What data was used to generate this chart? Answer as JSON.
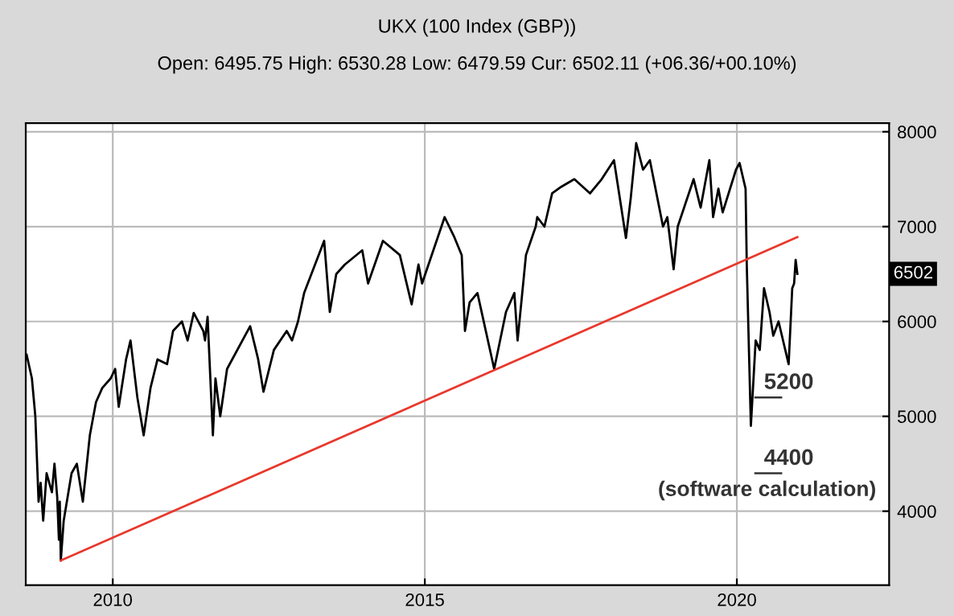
{
  "chart_data": {
    "type": "line",
    "title": "UKX (100 Index (GBP))",
    "subtitle": "Open: 6495.75 High: 6530.28 Low: 6479.59 Cur: 6502.11 (+06.36/+00.10%)",
    "xlim": [
      "2008-08-10",
      "2022-06-10"
    ],
    "ylim": [
      3220,
      8090
    ],
    "xticks": [
      "2010",
      "2015",
      "2020"
    ],
    "yticks": [
      4000,
      5000,
      6000,
      7000,
      8000
    ],
    "grid": true,
    "legend": false,
    "series": [
      {
        "color": "#000000",
        "values": [
          5650,
          5400,
          5000,
          4100,
          4300,
          3900,
          4400,
          4200,
          4500,
          4150,
          3700,
          4100,
          3480,
          3900,
          4400,
          4500,
          4100,
          4800,
          5150,
          5300,
          5400,
          5500,
          5100,
          5600,
          5800,
          5200,
          4800,
          5300,
          5600,
          5550,
          5900,
          6000,
          5800,
          6090,
          5900,
          5800,
          6050,
          4800,
          5400,
          5000,
          5500,
          5950,
          5600,
          5260,
          5700,
          5900,
          5800,
          6000,
          6300,
          6850,
          6100,
          6500,
          6600,
          6750,
          6400,
          6850,
          6700,
          6180,
          6600,
          6400,
          7100,
          6900,
          6700,
          5900,
          6200,
          6300,
          5500,
          6100,
          6300,
          5800,
          6700,
          7000,
          7100,
          7000,
          7350,
          7420,
          7500,
          7350,
          7500,
          7700,
          6880,
          7300,
          7880,
          7600,
          7700,
          7000,
          7100,
          6550,
          7000,
          7500,
          7200,
          7700,
          7100,
          7400,
          7150,
          7600,
          7670,
          7400,
          6600,
          4900,
          5800,
          5700,
          6350,
          6100,
          5850,
          6000,
          5550,
          6350,
          6400,
          6650,
          6502
        ],
        "x": [
          "2008-08-15",
          "2008-09-15",
          "2008-10-05",
          "2008-10-24",
          "2008-11-05",
          "2008-11-20",
          "2008-12-10",
          "2009-01-10",
          "2009-01-25",
          "2009-02-10",
          "2009-02-20",
          "2009-02-25",
          "2009-03-03",
          "2009-03-20",
          "2009-05-05",
          "2009-06-05",
          "2009-07-10",
          "2009-08-20",
          "2009-09-25",
          "2009-11-01",
          "2009-12-20",
          "2010-01-15",
          "2010-02-05",
          "2010-03-20",
          "2010-04-15",
          "2010-05-25",
          "2010-07-01",
          "2010-08-10",
          "2010-09-20",
          "2010-11-15",
          "2010-12-20",
          "2011-02-10",
          "2011-03-15",
          "2011-04-20",
          "2011-06-15",
          "2011-06-25",
          "2011-07-10",
          "2011-08-10",
          "2011-08-25",
          "2011-09-22",
          "2011-11-01",
          "2012-03-15",
          "2012-05-01",
          "2012-06-01",
          "2012-08-01",
          "2012-10-15",
          "2012-11-15",
          "2012-12-20",
          "2013-01-25",
          "2013-05-22",
          "2013-06-24",
          "2013-08-01",
          "2013-09-20",
          "2013-12-31",
          "2014-02-03",
          "2014-05-01",
          "2014-08-08",
          "2014-10-16",
          "2014-11-25",
          "2014-12-16",
          "2015-04-27",
          "2015-06-20",
          "2015-08-05",
          "2015-08-24",
          "2015-09-20",
          "2015-11-05",
          "2016-02-11",
          "2016-04-20",
          "2016-06-08",
          "2016-06-27",
          "2016-08-15",
          "2016-10-11",
          "2016-10-20",
          "2016-12-01",
          "2017-01-15",
          "2017-03-10",
          "2017-05-25",
          "2017-08-25",
          "2017-11-01",
          "2018-01-12",
          "2018-03-23",
          "2018-04-20",
          "2018-05-22",
          "2018-07-01",
          "2018-08-10",
          "2018-10-26",
          "2018-11-20",
          "2018-12-27",
          "2019-01-20",
          "2019-04-23",
          "2019-06-03",
          "2019-07-24",
          "2019-08-15",
          "2019-09-15",
          "2019-10-10",
          "2019-12-27",
          "2020-01-17",
          "2020-02-21",
          "2020-02-28",
          "2020-03-23",
          "2020-04-20",
          "2020-05-14",
          "2020-06-08",
          "2020-07-10",
          "2020-08-01",
          "2020-09-01",
          "2020-10-30",
          "2020-11-20",
          "2020-12-01",
          "2020-12-10",
          "2020-12-20"
        ]
      },
      {
        "color": "#e8382c",
        "x": [
          "2009-03-03",
          "2020-12-20"
        ],
        "values": [
          3480,
          6890
        ]
      }
    ],
    "annotations": [
      "6502",
      "(software calculation)"
    ],
    "ref_lines": [
      {
        "axis": "y",
        "value": 5200,
        "label": "5200",
        "color": "#333333"
      },
      {
        "axis": "y",
        "value": 4400,
        "label": "4400",
        "color": "#333333"
      }
    ]
  }
}
